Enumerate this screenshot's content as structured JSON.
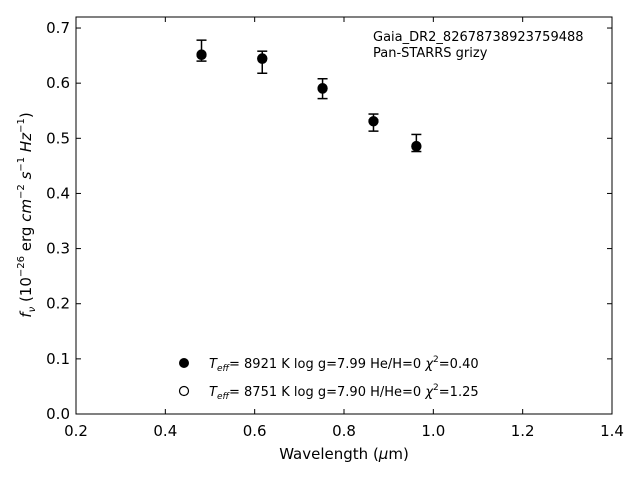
{
  "chart_data": {
    "type": "scatter",
    "xlabel": "Wavelength (μm)",
    "ylabel": "f_ν (10^-26 erg cm^-2 s^-1 Hz^-1)",
    "xlim": [
      0.2,
      1.4
    ],
    "ylim": [
      0.0,
      0.72
    ],
    "x_ticks": [
      "0.2",
      "0.4",
      "0.6",
      "0.8",
      "1.0",
      "1.2",
      "1.4"
    ],
    "y_ticks": [
      "0.0",
      "0.1",
      "0.2",
      "0.3",
      "0.4",
      "0.5",
      "0.6",
      "0.7"
    ],
    "grid": false,
    "annotation": [
      "Gaia_DR2_82678738923759488",
      "Pan-STARRS grizy"
    ],
    "observed": [
      {
        "x": 0.481,
        "y": 0.658,
        "err_low": 0.018,
        "err_high": 0.02
      },
      {
        "x": 0.617,
        "y": 0.638,
        "err_low": 0.02,
        "err_high": 0.02
      },
      {
        "x": 0.752,
        "y": 0.59,
        "err_low": 0.018,
        "err_high": 0.018
      },
      {
        "x": 0.866,
        "y": 0.528,
        "err_low": 0.015,
        "err_high": 0.016
      },
      {
        "x": 0.962,
        "y": 0.491,
        "err_low": 0.015,
        "err_high": 0.016
      }
    ],
    "series": [
      {
        "name": "Teff= 8921 K log g=7.99 He/H=0 χ2=0.40",
        "marker": "filled-circle",
        "x": [
          0.481,
          0.617,
          0.752,
          0.866,
          0.962
        ],
        "y": [
          0.651,
          0.644,
          0.591,
          0.531,
          0.486
        ]
      },
      {
        "name": "Teff= 8751 K log g=7.90 H/He=0 χ2=1.25",
        "marker": "open-circle",
        "x": [
          0.481,
          0.617,
          0.752,
          0.866,
          0.962
        ],
        "y": [
          0.652,
          0.645,
          0.59,
          0.531,
          0.485
        ]
      }
    ],
    "legend": [
      {
        "teff": "8921 K",
        "logg": "log g=7.99",
        "comp": "He/H=0",
        "chi": "=0.40"
      },
      {
        "teff": "8751 K",
        "logg": "log g=7.90",
        "comp": "H/He=0",
        "chi": "=1.25"
      }
    ],
    "legend_placement": "bottom-center",
    "colors": {
      "marker": "#000000",
      "axis": "#000000"
    }
  }
}
